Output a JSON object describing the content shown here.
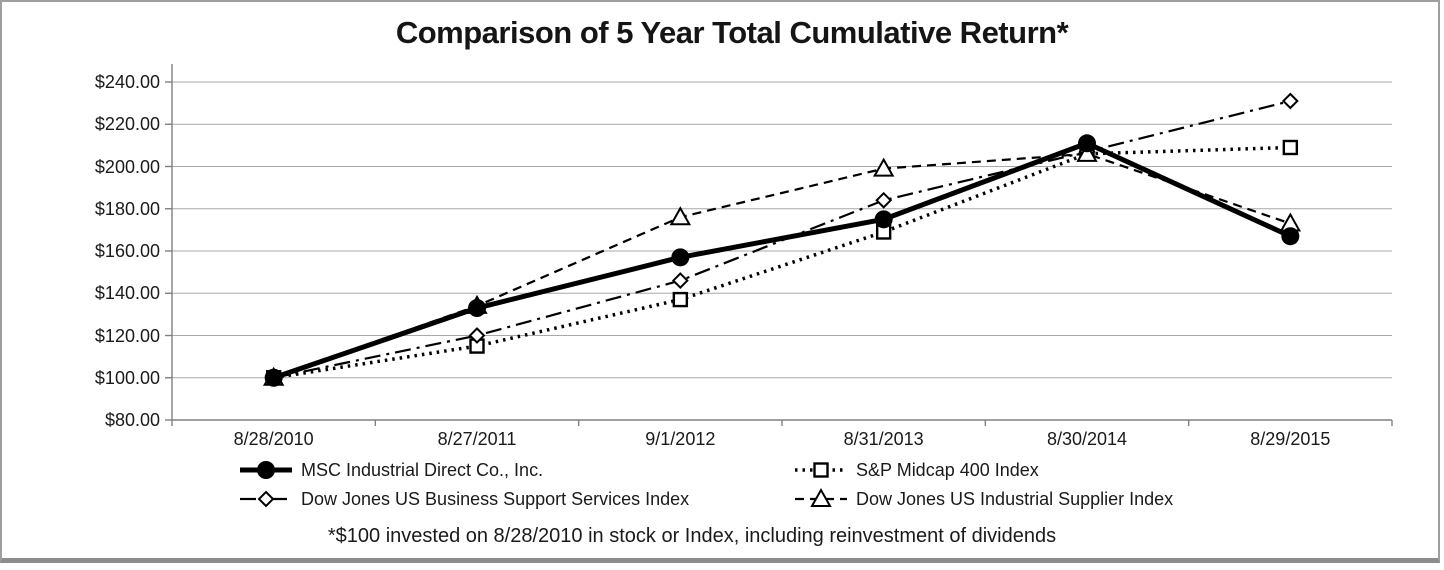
{
  "chart_data": {
    "type": "line",
    "title": "Comparison of 5 Year Total Cumulative Return*",
    "footnote": "*$100 invested on 8/28/2010 in stock or Index, including reinvestment of dividends",
    "x_labels": [
      "8/28/2010",
      "8/27/2011",
      "9/1/2012",
      "8/31/2013",
      "8/30/2014",
      "8/29/2015"
    ],
    "y_ticks": [
      240,
      220,
      200,
      180,
      160,
      140,
      120,
      100,
      80
    ],
    "y_tick_labels": [
      "$240.00",
      "$220.00",
      "$200.00",
      "$180.00",
      "$160.00",
      "$140.00",
      "$120.00",
      "$100.00",
      "$80.00"
    ],
    "ylim": [
      80,
      248
    ],
    "grid": true,
    "legend_position": "bottom-two-columns",
    "series": [
      {
        "name": "MSC Industrial Direct Co., Inc.",
        "marker": "filled-circle",
        "line": "solid-thick",
        "values": [
          100,
          133,
          157,
          175,
          211,
          167
        ]
      },
      {
        "name": "S&P Midcap 400 Index",
        "marker": "open-square",
        "line": "dotted",
        "values": [
          100,
          115,
          137,
          169,
          206,
          209
        ]
      },
      {
        "name": "Dow Jones US Business Support Services Index",
        "marker": "open-diamond",
        "line": "dash-dot",
        "values": [
          100,
          120,
          146,
          184,
          207,
          231
        ]
      },
      {
        "name": "Dow Jones US Industrial Supplier Index",
        "marker": "open-triangle",
        "line": "dashed",
        "values": [
          100,
          134,
          176,
          199,
          206,
          173
        ]
      }
    ],
    "colors": {
      "series": "#000000",
      "grid": "#a8a8a8",
      "axis": "#808080",
      "text": "#1a1a1a",
      "border": "#9e9e9e"
    }
  }
}
